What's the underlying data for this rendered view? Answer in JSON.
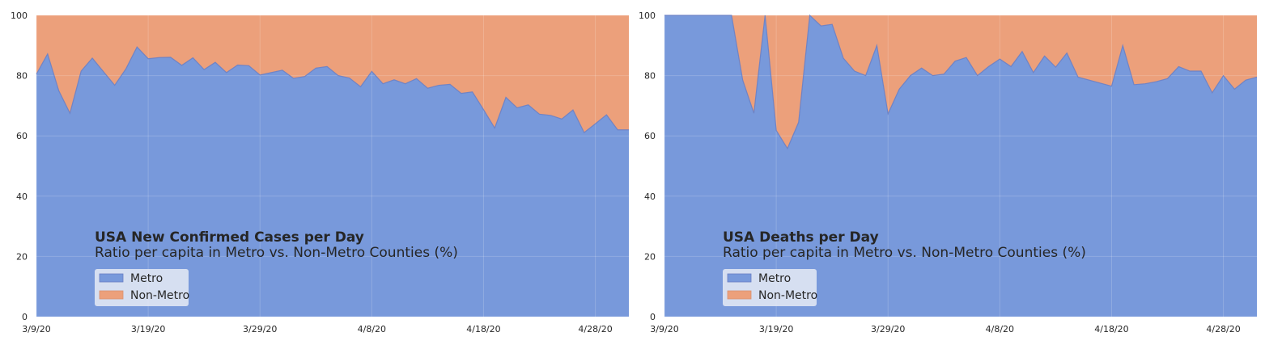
{
  "colors": {
    "metro": "#7899db",
    "non_metro": "#eca07b",
    "metro_edge": "#6a7fc4",
    "legend_bg": "#eef0f6"
  },
  "chart_data": [
    {
      "type": "area",
      "stacked": true,
      "title": "USA New Confirmed Cases per Day",
      "subtitle": "Ratio per capita in Metro vs. Non-Metro Counties (%)",
      "xlabel": "",
      "ylabel": "",
      "ylim": [
        0,
        100
      ],
      "yticks": [
        0,
        20,
        40,
        60,
        80,
        100
      ],
      "xlim": [
        "2020-03-09",
        "2020-05-01"
      ],
      "xticks": [
        "3/9/20",
        "3/19/20",
        "3/29/20",
        "4/8/20",
        "4/18/20",
        "4/28/20"
      ],
      "legend_placement": "lower-left",
      "grid": true,
      "x": [
        "2020-03-09",
        "2020-03-10",
        "2020-03-11",
        "2020-03-12",
        "2020-03-13",
        "2020-03-14",
        "2020-03-15",
        "2020-03-16",
        "2020-03-17",
        "2020-03-18",
        "2020-03-19",
        "2020-03-20",
        "2020-03-21",
        "2020-03-22",
        "2020-03-23",
        "2020-03-24",
        "2020-03-25",
        "2020-03-26",
        "2020-03-27",
        "2020-03-28",
        "2020-03-29",
        "2020-03-30",
        "2020-03-31",
        "2020-04-01",
        "2020-04-02",
        "2020-04-03",
        "2020-04-04",
        "2020-04-05",
        "2020-04-06",
        "2020-04-07",
        "2020-04-08",
        "2020-04-09",
        "2020-04-10",
        "2020-04-11",
        "2020-04-12",
        "2020-04-13",
        "2020-04-14",
        "2020-04-15",
        "2020-04-16",
        "2020-04-17",
        "2020-04-18",
        "2020-04-19",
        "2020-04-20",
        "2020-04-21",
        "2020-04-22",
        "2020-04-23",
        "2020-04-24",
        "2020-04-25",
        "2020-04-26",
        "2020-04-27",
        "2020-04-28",
        "2020-04-29",
        "2020-04-30",
        "2020-05-01"
      ],
      "series": [
        {
          "name": "Metro",
          "values": [
            80.5,
            87.2,
            75.0,
            67.5,
            81.5,
            85.8,
            81.3,
            76.8,
            82.2,
            89.5,
            85.6,
            86.0,
            86.1,
            83.4,
            85.9,
            82.0,
            84.4,
            81.0,
            83.5,
            83.3,
            80.2,
            81.0,
            81.8,
            79.1,
            79.7,
            82.5,
            83.0,
            80.0,
            79.2,
            76.3,
            81.4,
            77.3,
            78.6,
            77.3,
            79.0,
            75.8,
            76.8,
            77.1,
            74.1,
            74.6,
            68.7,
            62.6,
            72.8,
            69.3,
            70.3,
            67.2,
            66.8,
            65.6,
            68.6,
            61.1,
            64.0,
            67.0,
            62.0,
            62.0
          ]
        },
        {
          "name": "Non-Metro",
          "values": [
            19.5,
            12.8,
            25.0,
            32.5,
            18.5,
            14.2,
            18.7,
            23.2,
            17.8,
            10.5,
            14.4,
            14.0,
            13.9,
            16.6,
            14.1,
            18.0,
            15.6,
            19.0,
            16.5,
            16.7,
            19.8,
            19.0,
            18.2,
            20.9,
            20.3,
            17.5,
            17.0,
            20.0,
            20.8,
            23.7,
            18.6,
            22.7,
            21.4,
            22.7,
            21.0,
            24.2,
            23.2,
            22.9,
            25.9,
            25.4,
            31.3,
            37.4,
            27.2,
            30.7,
            29.7,
            32.8,
            33.2,
            34.4,
            31.4,
            38.9,
            36.0,
            33.0,
            38.0,
            38.0
          ]
        }
      ]
    },
    {
      "type": "area",
      "stacked": true,
      "title": "USA Deaths per Day",
      "subtitle": "Ratio per capita in Metro vs. Non-Metro Counties (%)",
      "xlabel": "",
      "ylabel": "",
      "ylim": [
        0,
        100
      ],
      "yticks": [
        0,
        20,
        40,
        60,
        80,
        100
      ],
      "xlim": [
        "2020-03-09",
        "2020-05-01"
      ],
      "xticks": [
        "3/9/20",
        "3/19/20",
        "3/29/20",
        "4/8/20",
        "4/18/20",
        "4/28/20"
      ],
      "legend_placement": "lower-left",
      "grid": true,
      "x": [
        "2020-03-09",
        "2020-03-10",
        "2020-03-11",
        "2020-03-12",
        "2020-03-13",
        "2020-03-14",
        "2020-03-15",
        "2020-03-16",
        "2020-03-17",
        "2020-03-18",
        "2020-03-19",
        "2020-03-20",
        "2020-03-21",
        "2020-03-22",
        "2020-03-23",
        "2020-03-24",
        "2020-03-25",
        "2020-03-26",
        "2020-03-27",
        "2020-03-28",
        "2020-03-29",
        "2020-03-30",
        "2020-03-31",
        "2020-04-01",
        "2020-04-02",
        "2020-04-03",
        "2020-04-04",
        "2020-04-05",
        "2020-04-06",
        "2020-04-07",
        "2020-04-08",
        "2020-04-09",
        "2020-04-10",
        "2020-04-11",
        "2020-04-12",
        "2020-04-13",
        "2020-04-14",
        "2020-04-15",
        "2020-04-16",
        "2020-04-17",
        "2020-04-18",
        "2020-04-19",
        "2020-04-20",
        "2020-04-21",
        "2020-04-22",
        "2020-04-23",
        "2020-04-24",
        "2020-04-25",
        "2020-04-26",
        "2020-04-27",
        "2020-04-28",
        "2020-04-29",
        "2020-04-30",
        "2020-05-01"
      ],
      "series": [
        {
          "name": "Metro",
          "values": [
            100,
            100,
            100,
            100,
            100,
            100,
            100,
            78.5,
            67.5,
            100,
            61.8,
            55.8,
            64.5,
            100,
            96.5,
            97.0,
            85.8,
            81.5,
            80.0,
            90.0,
            67.3,
            75.5,
            80.0,
            82.5,
            80.0,
            80.5,
            84.8,
            86.0,
            80.0,
            83.0,
            85.5,
            83.0,
            88.0,
            81.0,
            86.5,
            82.8,
            87.5,
            79.5,
            78.5,
            77.5,
            76.5,
            90.0,
            77.0,
            77.3,
            78.0,
            79.0,
            83.0,
            81.5,
            81.5,
            74.3,
            80.0,
            75.5,
            78.5,
            79.5
          ]
        },
        {
          "name": "Non-Metro",
          "values": [
            0,
            0,
            0,
            0,
            0,
            0,
            0,
            21.5,
            32.5,
            0,
            38.2,
            44.2,
            35.5,
            0,
            3.5,
            3.0,
            14.2,
            18.5,
            20.0,
            10.0,
            32.7,
            24.5,
            20.0,
            17.5,
            20.0,
            19.5,
            15.2,
            14.0,
            20.0,
            17.0,
            14.5,
            17.0,
            12.0,
            19.0,
            13.5,
            17.2,
            12.5,
            20.5,
            21.5,
            22.5,
            23.5,
            10.0,
            23.0,
            22.7,
            22.0,
            21.0,
            17.0,
            18.5,
            18.5,
            25.7,
            20.0,
            24.5,
            21.5,
            20.5
          ]
        }
      ]
    }
  ]
}
